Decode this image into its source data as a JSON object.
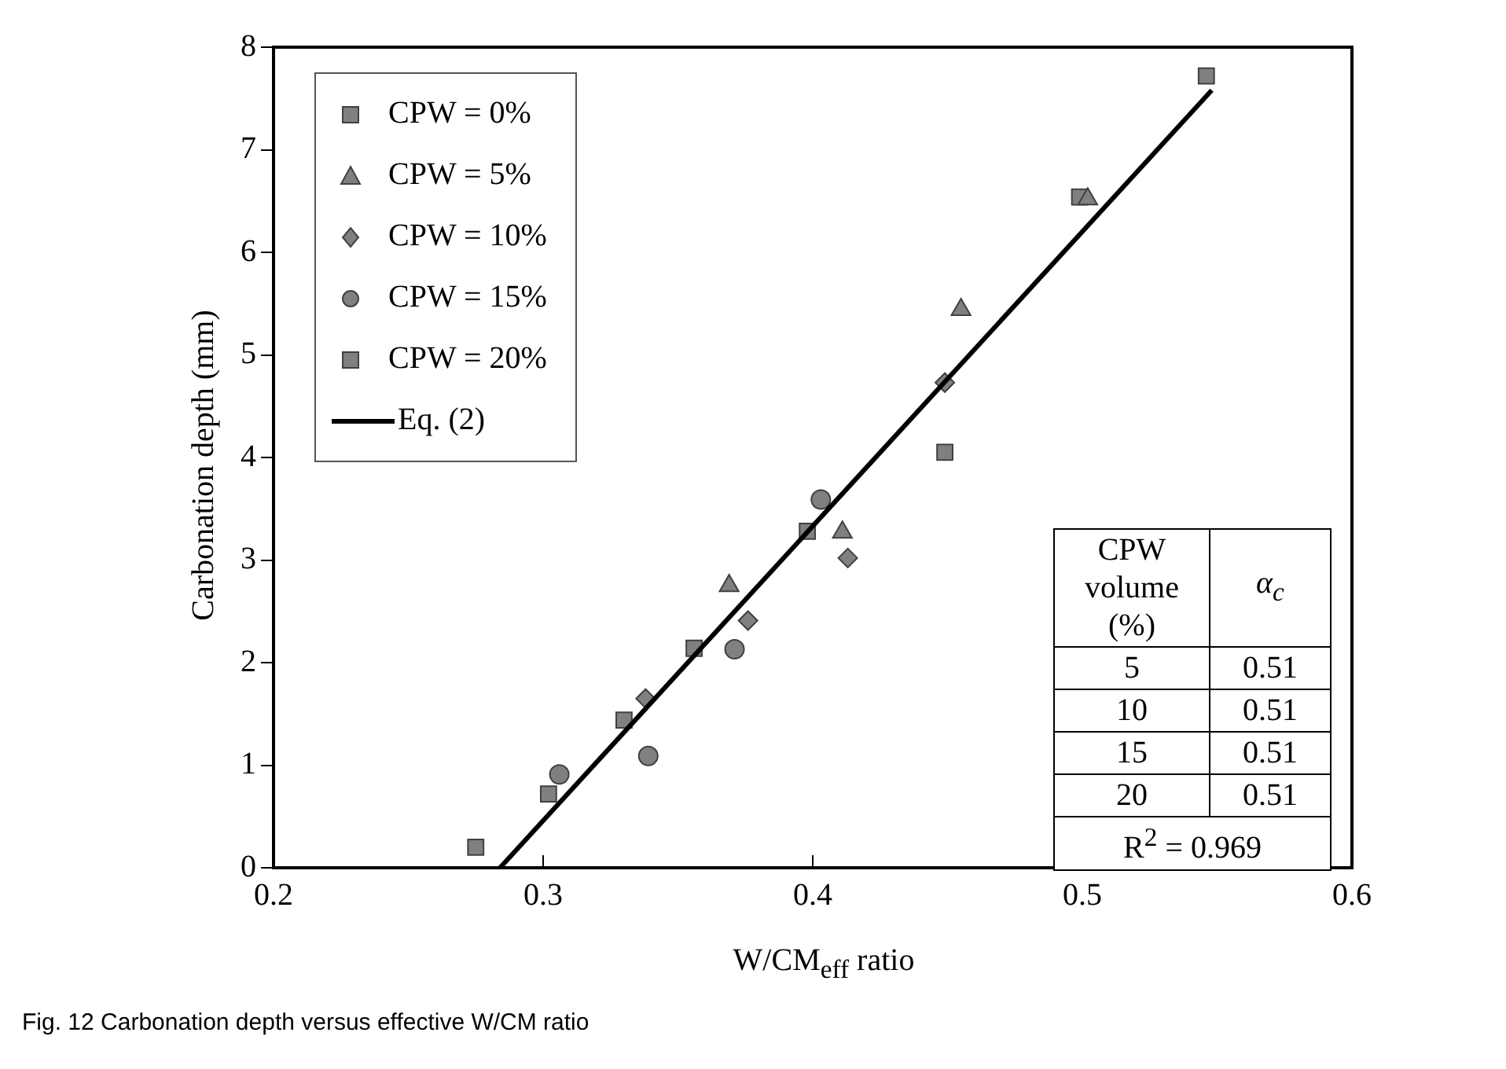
{
  "chart_data": {
    "type": "scatter",
    "xlabel": "W/CM$_{eff}$ ratio",
    "ylabel": "Carbonation depth (mm)",
    "xlim": [
      0.2,
      0.6
    ],
    "xticks": [
      0.2,
      0.3,
      0.4,
      0.5,
      0.6
    ],
    "ylim": [
      0,
      8
    ],
    "yticks": [
      0,
      1,
      2,
      3,
      4,
      5,
      6,
      7,
      8
    ],
    "grid": false,
    "legend": "top left",
    "series": [
      {
        "name": "CPW = 0%",
        "color": "#808080",
        "marker": "square",
        "x": [
          0.546,
          0.499,
          0.449,
          0.398
        ],
        "values": [
          7.72,
          6.54,
          4.05,
          3.28
        ]
      },
      {
        "name": "CPW = 5%",
        "color": "#808080",
        "marker": "triangle",
        "x": [
          0.502,
          0.455,
          0.411,
          0.369
        ],
        "values": [
          6.52,
          5.44,
          3.27,
          2.75
        ]
      },
      {
        "name": "CPW = 10%",
        "color": "#808080",
        "marker": "diamond",
        "x": [
          0.449,
          0.413,
          0.376,
          0.338
        ],
        "values": [
          4.73,
          3.02,
          2.41,
          1.65
        ]
      },
      {
        "name": "CPW = 15%",
        "color": "#808080",
        "marker": "circle",
        "x": [
          0.403,
          0.371,
          0.339,
          0.306
        ],
        "values": [
          3.59,
          2.13,
          1.09,
          0.91
        ]
      },
      {
        "name": "CPW = 20%",
        "color": "#808080",
        "marker": "square",
        "x": [
          0.356,
          0.33,
          0.302,
          0.275
        ],
        "values": [
          2.14,
          1.44,
          0.72,
          0.2
        ]
      },
      {
        "name": "Eq. (2)",
        "type": "line",
        "color": "#000000",
        "marker": "none",
        "line_style": "solid",
        "x": [
          0.284,
          0.548
        ],
        "values": [
          0,
          7.58
        ]
      }
    ],
    "annotations": [
      "CPW volume (%)",
      "α$_{c}$",
      "5",
      "0.51",
      "10",
      "0.51",
      "15",
      "0.51",
      "20",
      "0.51",
      "R$^{2}$ = 0.969",
      "Fig. 12 Carbonation depth versus effective W/CM ratio"
    ]
  }
}
